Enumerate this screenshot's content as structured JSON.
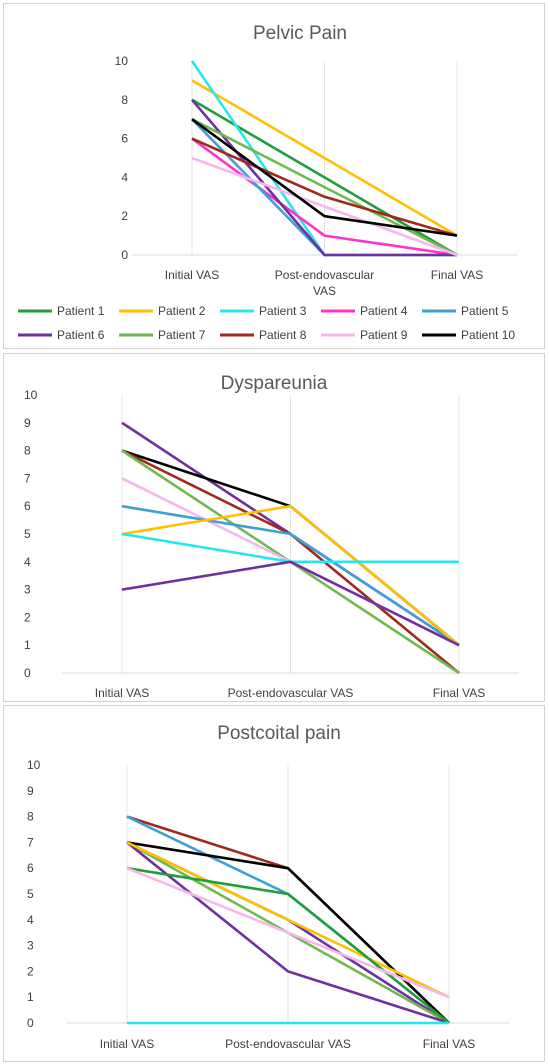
{
  "charts": {
    "colors": {
      "patient1": "#1f9e3a",
      "patient2": "#ffc000",
      "patient3": "#27e7ec",
      "patient4": "#ff33cc",
      "patient5": "#3f9fd7",
      "patient6": "#7030a0",
      "patient7": "#70b94f",
      "patient8": "#a0291d",
      "patient9": "#f7b6ee",
      "patient10": "#000000"
    }
  },
  "chart_data": [
    {
      "type": "line",
      "title": "Pelvic Pain",
      "categories": [
        "Initial VAS",
        "Post-endovascular VAS",
        "Final VAS"
      ],
      "ylim": [
        0,
        10
      ],
      "yticks": [
        0,
        2,
        4,
        6,
        8,
        10
      ],
      "legend": "bottom",
      "series": [
        {
          "name": "Patient 1",
          "values": [
            8,
            4,
            0
          ]
        },
        {
          "name": "Patient 2",
          "values": [
            9,
            5,
            1
          ]
        },
        {
          "name": "Patient 3",
          "values": [
            10,
            0,
            0
          ]
        },
        {
          "name": "Patient 4",
          "values": [
            6,
            1,
            0
          ]
        },
        {
          "name": "Patient 5",
          "values": [
            7,
            0,
            0
          ]
        },
        {
          "name": "Patient 6",
          "values": [
            8,
            0,
            0
          ]
        },
        {
          "name": "Patient 7",
          "values": [
            7,
            3.5,
            0
          ]
        },
        {
          "name": "Patient 8",
          "values": [
            6,
            3,
            1
          ]
        },
        {
          "name": "Patient 9",
          "values": [
            5,
            2.5,
            0
          ]
        },
        {
          "name": "Patient 10",
          "values": [
            7,
            2,
            1
          ]
        }
      ]
    },
    {
      "type": "line",
      "title": "Dyspareunia",
      "categories": [
        "Initial VAS",
        "Post-endovascular VAS",
        "Final VAS"
      ],
      "ylim": [
        0,
        10
      ],
      "yticks": [
        0,
        1,
        2,
        3,
        4,
        5,
        6,
        7,
        8,
        9,
        10
      ],
      "series": [
        {
          "values": [
            9,
            5,
            1
          ]
        },
        {
          "values": [
            8,
            6,
            1
          ]
        },
        {
          "values": [
            8,
            5,
            0
          ]
        },
        {
          "values": [
            8,
            4,
            0
          ]
        },
        {
          "values": [
            7,
            4,
            1
          ]
        },
        {
          "values": [
            6,
            5,
            1
          ]
        },
        {
          "values": [
            5,
            6,
            1
          ]
        },
        {
          "values": [
            5,
            4,
            4
          ]
        },
        {
          "values": [
            3,
            4,
            1
          ]
        }
      ]
    },
    {
      "type": "line",
      "title": "Postcoital pain",
      "categories": [
        "Initial VAS",
        "Post-endovascular VAS",
        "Final VAS"
      ],
      "ylim": [
        0,
        10
      ],
      "yticks": [
        0,
        1,
        2,
        3,
        4,
        5,
        6,
        7,
        8,
        9,
        10
      ],
      "series": [
        {
          "values": [
            8,
            6,
            0
          ]
        },
        {
          "values": [
            8,
            5,
            0
          ]
        },
        {
          "values": [
            7,
            6,
            0
          ]
        },
        {
          "values": [
            7,
            4,
            0
          ]
        },
        {
          "values": [
            7,
            3.5,
            0
          ]
        },
        {
          "values": [
            7,
            2,
            0
          ]
        },
        {
          "values": [
            7,
            4,
            1
          ]
        },
        {
          "values": [
            6,
            5,
            0
          ]
        },
        {
          "values": [
            6,
            3.5,
            1
          ]
        },
        {
          "values": [
            0,
            0,
            0
          ]
        }
      ]
    }
  ]
}
